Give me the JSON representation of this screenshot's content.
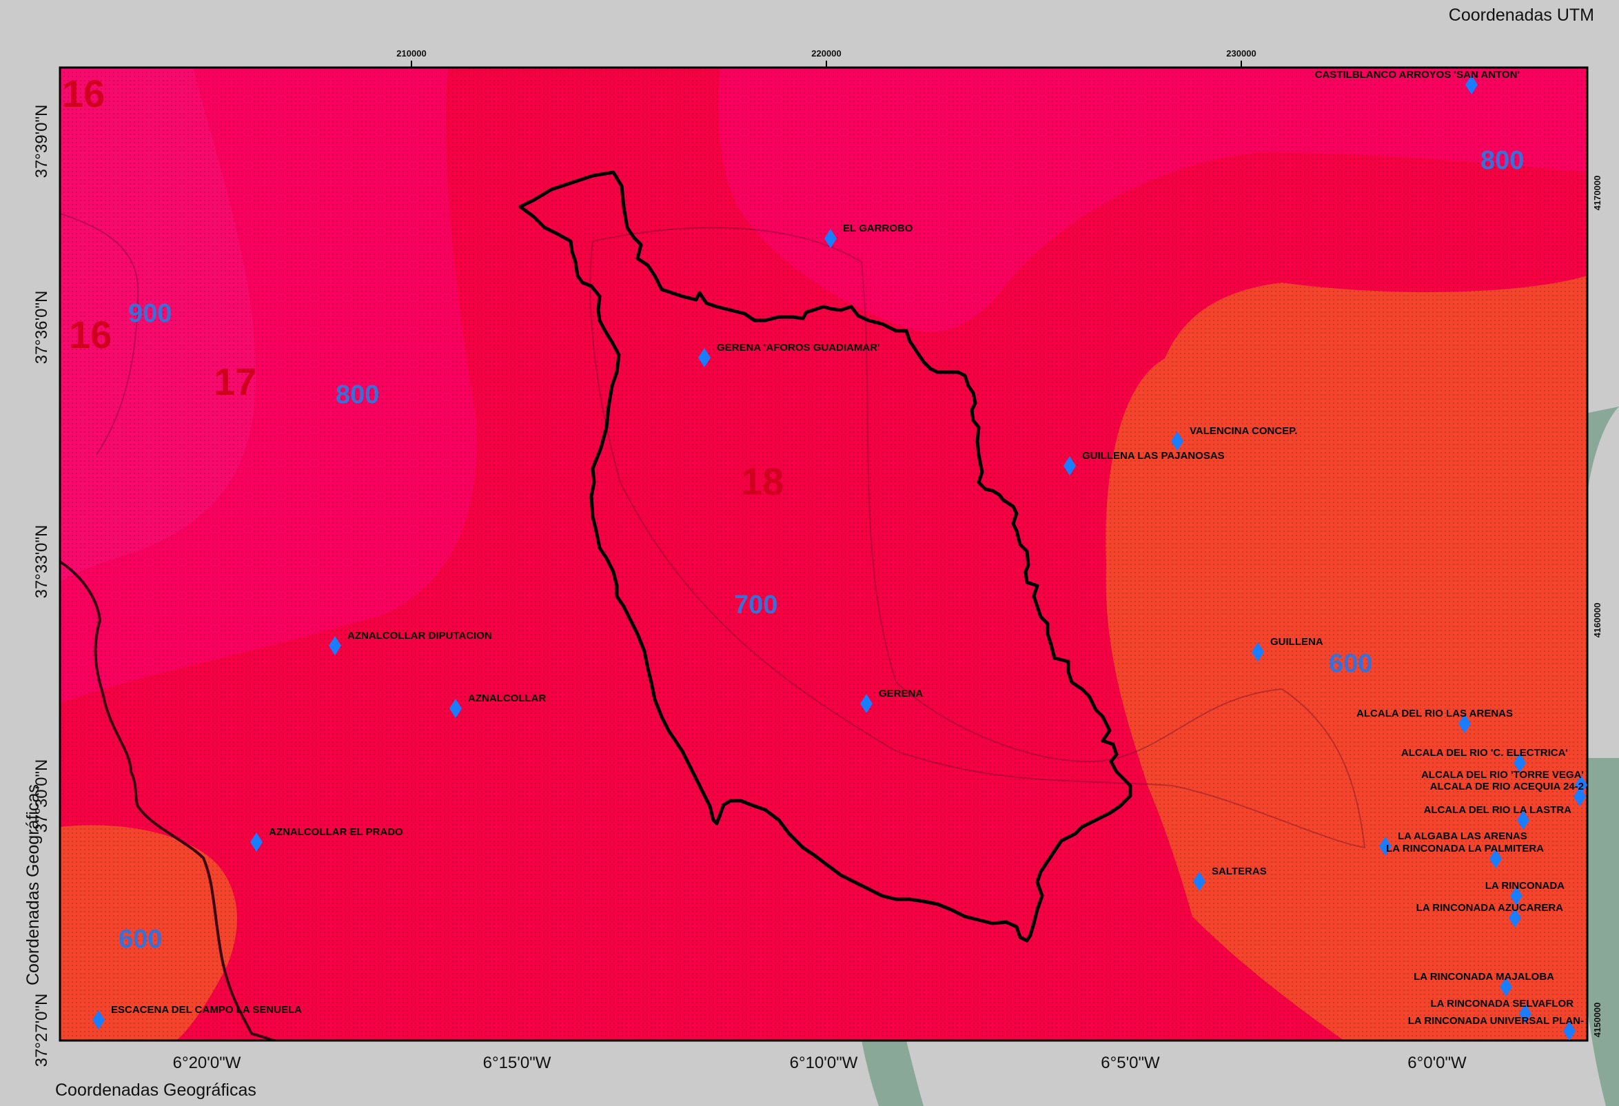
{
  "titles": {
    "utm": "Coordenadas UTM",
    "geo_bottom": "Coordenadas Geográficas",
    "geo_left": "Coordenadas Geográficas"
  },
  "lat_labels": [
    "37°39'0\"N",
    "37°36'0\"N",
    "37°33'0\"N",
    "37°30'0\"N",
    "37°27'0\"N"
  ],
  "lon_labels": [
    "6°20'0\"W",
    "6°15'0\"W",
    "6°10'0\"W",
    "6°5'0\"W",
    "6°0'0\"W"
  ],
  "utm_x_labels": [
    "210000",
    "220000",
    "230000"
  ],
  "utm_y_labels": [
    "4170000",
    "4160000",
    "4150000"
  ],
  "temp_labels": [
    "16",
    "16",
    "17",
    "18"
  ],
  "precip_labels": [
    "900",
    "800",
    "700",
    "600",
    "600",
    "800"
  ],
  "stations": [
    "CASTILBLANCO ARROYOS 'SAN ANTON'",
    "EL GARROBO",
    "GERENA 'AFOROS GUADIAMAR'",
    "VALENCINA CONCEP.",
    "GUILLENA LAS PAJANOSAS",
    "AZNALCOLLAR DIPUTACION",
    "GUILLENA",
    "AZNALCOLLAR",
    "GERENA",
    "ALCALA DEL RIO LAS ARENAS",
    "ALCALA DEL RIO 'C. ELECTRICA'",
    "ALCALA DEL RIO 'TORRE VEGA'",
    "ALCALA DE RIO ACEQUIA 24-2",
    "ALCALA DEL RIO LA LASTRA",
    "AZNALCOLLAR EL PRADO",
    "LA ALGABA LAS ARENAS",
    "LA RINCONADA LA PALMITERA",
    "SALTERAS",
    "LA RINCONADA",
    "LA RINCONADA AZUCARERA",
    "LA RINCONADA MAJALOBA",
    "LA RINCONADA SELVAFLOR",
    "ESCACENA DEL CAMPO LA SENUELA",
    "LA RINCONADA UNIVERSAL PLAN-"
  ],
  "colors": {
    "zone_warm": "#f60044",
    "zone_cool": "#fa005e",
    "zone_coolest": "#f70a6c",
    "zone_orange": "#f4452c",
    "station_marker": "#1a7cff",
    "basin_outline": "#000000",
    "background": "#cbcbcb",
    "decor_swoosh": "#8aa898"
  }
}
